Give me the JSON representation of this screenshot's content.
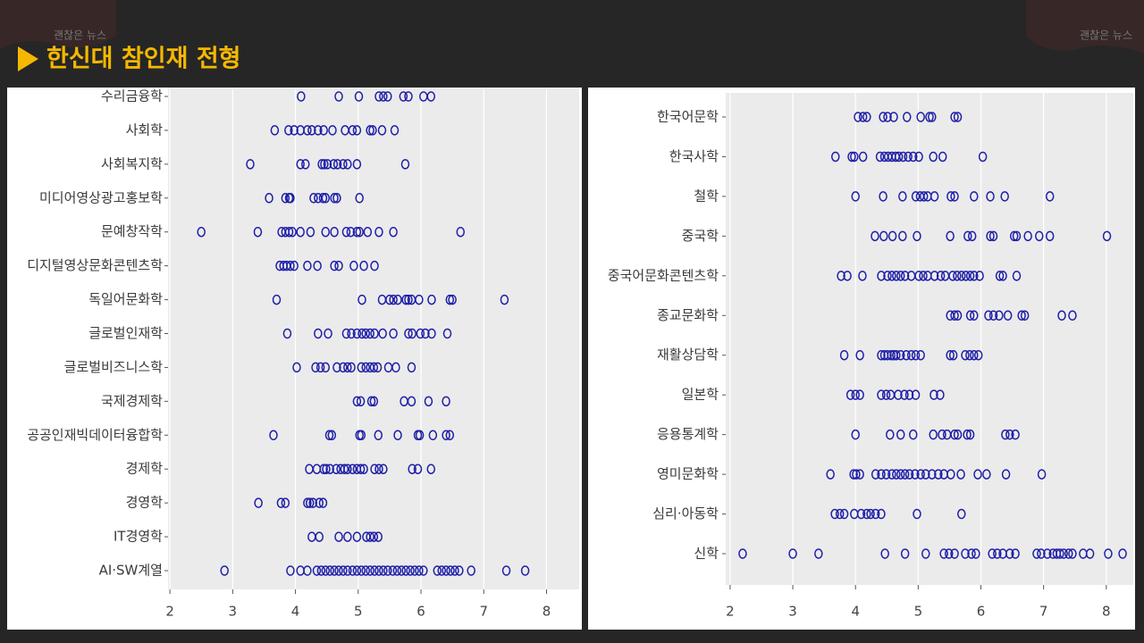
{
  "header": {
    "title": "한신대 참인재 전형",
    "watermark": "괜찮은 뉴스"
  },
  "chart_data": [
    {
      "type": "strip",
      "color": "#1f1fa8",
      "xlim": [
        1.97,
        8.52
      ],
      "xticks": [
        2,
        3,
        4,
        5,
        6,
        7,
        8
      ],
      "grid": true,
      "categories": [
        "수리금융학",
        "사회학",
        "사회복지학",
        "미디어영상광고홍보학",
        "문예창작학",
        "디지털영상문화콘텐츠학",
        "독일어문화학",
        "글로벌인재학",
        "글로벌비즈니스학",
        "국제경제학",
        "공공인재빅데이터융합학",
        "경제학",
        "경영학",
        "IT경영학",
        "AI·SW계열"
      ],
      "values": [
        [
          4.09,
          4.69,
          5.01,
          5.33,
          5.4,
          5.47,
          5.72,
          5.8,
          6.04,
          6.16
        ],
        [
          3.67,
          3.89,
          3.98,
          4.08,
          4.19,
          4.26,
          4.36,
          4.45,
          4.59,
          4.79,
          4.91,
          4.98,
          5.19,
          5.23,
          5.38,
          5.58
        ],
        [
          3.28,
          4.08,
          4.16,
          4.42,
          4.46,
          4.51,
          4.61,
          4.67,
          4.76,
          4.83,
          4.98,
          5.75
        ],
        [
          3.58,
          3.84,
          3.9,
          3.92,
          4.29,
          4.36,
          4.44,
          4.48,
          4.62,
          4.66,
          5.02
        ],
        [
          2.5,
          3.4,
          3.78,
          3.84,
          3.9,
          3.95,
          4.08,
          4.24,
          4.48,
          4.62,
          4.81,
          4.88,
          4.98,
          5.02,
          5.15,
          5.33,
          5.56,
          6.63
        ],
        [
          3.75,
          3.81,
          3.86,
          3.92,
          3.98,
          4.19,
          4.35,
          4.62,
          4.69,
          4.93,
          5.09,
          5.26
        ],
        [
          3.7,
          5.06,
          5.38,
          5.5,
          5.56,
          5.63,
          5.76,
          5.8,
          5.85,
          5.97,
          6.17,
          6.46,
          6.5,
          7.33
        ],
        [
          3.87,
          4.36,
          4.52,
          4.81,
          4.89,
          4.98,
          5.06,
          5.12,
          5.19,
          5.26,
          5.39,
          5.56,
          5.8,
          5.86,
          5.99,
          6.07,
          6.17,
          6.42
        ],
        [
          4.02,
          4.32,
          4.4,
          4.48,
          4.66,
          4.76,
          4.83,
          4.89,
          5.05,
          5.12,
          5.19,
          5.25,
          5.31,
          5.48,
          5.6,
          5.85
        ],
        [
          4.98,
          5.04,
          5.21,
          5.25,
          5.73,
          5.85,
          6.12,
          6.4
        ],
        [
          3.65,
          4.54,
          4.58,
          5.02,
          5.05,
          5.32,
          5.63,
          5.95,
          5.98,
          6.19,
          6.4,
          6.46
        ],
        [
          4.22,
          4.34,
          4.45,
          4.49,
          4.55,
          4.65,
          4.72,
          4.78,
          4.83,
          4.91,
          4.98,
          5.04,
          5.09,
          5.26,
          5.33,
          5.4,
          5.86,
          5.95,
          6.16
        ],
        [
          3.41,
          3.77,
          3.84,
          4.19,
          4.23,
          4.28,
          4.38,
          4.44
        ],
        [
          4.26,
          4.38,
          4.69,
          4.83,
          4.98,
          5.13,
          5.19,
          5.25,
          5.32
        ],
        [
          2.87,
          3.92,
          4.08,
          4.19,
          4.34,
          4.41,
          4.48,
          4.55,
          4.62,
          4.69,
          4.76,
          4.83,
          4.91,
          4.98,
          5.05,
          5.12,
          5.19,
          5.26,
          5.33,
          5.4,
          5.47,
          5.55,
          5.62,
          5.69,
          5.76,
          5.83,
          5.9,
          5.97,
          6.04,
          6.26,
          6.33,
          6.4,
          6.47,
          6.54,
          6.61,
          6.8,
          7.36,
          7.66
        ]
      ]
    },
    {
      "type": "strip",
      "color": "#1f1fa8",
      "xlim": [
        1.93,
        8.43
      ],
      "xticks": [
        2,
        3,
        4,
        5,
        6,
        7,
        8
      ],
      "grid": true,
      "categories": [
        "한국어문학",
        "한국사학",
        "철학",
        "중국학",
        "중국어문화콘텐츠학",
        "종교문화학",
        "재활상담학",
        "일본학",
        "응용통계학",
        "영미문화학",
        "심리·아동학",
        "신학"
      ],
      "values": [
        [
          4.04,
          4.12,
          4.18,
          4.44,
          4.51,
          4.61,
          4.82,
          5.04,
          5.18,
          5.22,
          5.58,
          5.63
        ],
        [
          3.68,
          3.94,
          3.98,
          4.12,
          4.39,
          4.46,
          4.52,
          4.58,
          4.64,
          4.69,
          4.76,
          4.84,
          4.92,
          5.01,
          5.24,
          5.39,
          6.03
        ],
        [
          4.0,
          4.44,
          4.75,
          4.96,
          5.03,
          5.09,
          5.15,
          5.26,
          5.52,
          5.58,
          5.89,
          6.15,
          6.38,
          7.1
        ],
        [
          4.31,
          4.45,
          4.59,
          4.75,
          4.98,
          5.51,
          5.79,
          5.86,
          6.15,
          6.2,
          6.53,
          6.57,
          6.75,
          6.93,
          7.1,
          8.01
        ],
        [
          3.77,
          3.87,
          4.11,
          4.41,
          4.51,
          4.58,
          4.65,
          4.72,
          4.79,
          4.89,
          5.01,
          5.08,
          5.15,
          5.26,
          5.36,
          5.43,
          5.55,
          5.62,
          5.69,
          5.76,
          5.83,
          5.89,
          5.98,
          6.3,
          6.35,
          6.57
        ],
        [
          5.51,
          5.58,
          5.63,
          5.83,
          5.89,
          6.12,
          6.2,
          6.29,
          6.43,
          6.65,
          6.7,
          7.29,
          7.46
        ],
        [
          3.82,
          4.07,
          4.41,
          4.46,
          4.51,
          4.57,
          4.61,
          4.65,
          4.72,
          4.81,
          4.89,
          4.96,
          5.04,
          5.51,
          5.56,
          5.75,
          5.82,
          5.89,
          5.96
        ],
        [
          3.92,
          4.0,
          4.07,
          4.41,
          4.49,
          4.56,
          4.68,
          4.78,
          4.86,
          4.96,
          5.25,
          5.35
        ],
        [
          4.0,
          4.55,
          4.72,
          4.92,
          5.24,
          5.38,
          5.46,
          5.58,
          5.63,
          5.78,
          5.83,
          6.39,
          6.46,
          6.55
        ],
        [
          3.6,
          3.97,
          4.01,
          4.07,
          4.32,
          4.41,
          4.49,
          4.58,
          4.65,
          4.72,
          4.79,
          4.86,
          4.95,
          5.04,
          5.12,
          5.22,
          5.32,
          5.41,
          5.52,
          5.68,
          5.95,
          6.09,
          6.4,
          6.97
        ],
        [
          3.67,
          3.75,
          3.82,
          3.98,
          4.09,
          4.18,
          4.24,
          4.32,
          4.41,
          4.98,
          5.69
        ],
        [
          2.2,
          3.0,
          3.41,
          4.47,
          4.79,
          5.12,
          5.41,
          5.49,
          5.58,
          5.75,
          5.85,
          5.92,
          6.18,
          6.26,
          6.35,
          6.46,
          6.55,
          6.89,
          6.96,
          7.06,
          7.15,
          7.21,
          7.26,
          7.32,
          7.4,
          7.46,
          7.63,
          7.74,
          8.03,
          8.26
        ]
      ]
    }
  ]
}
